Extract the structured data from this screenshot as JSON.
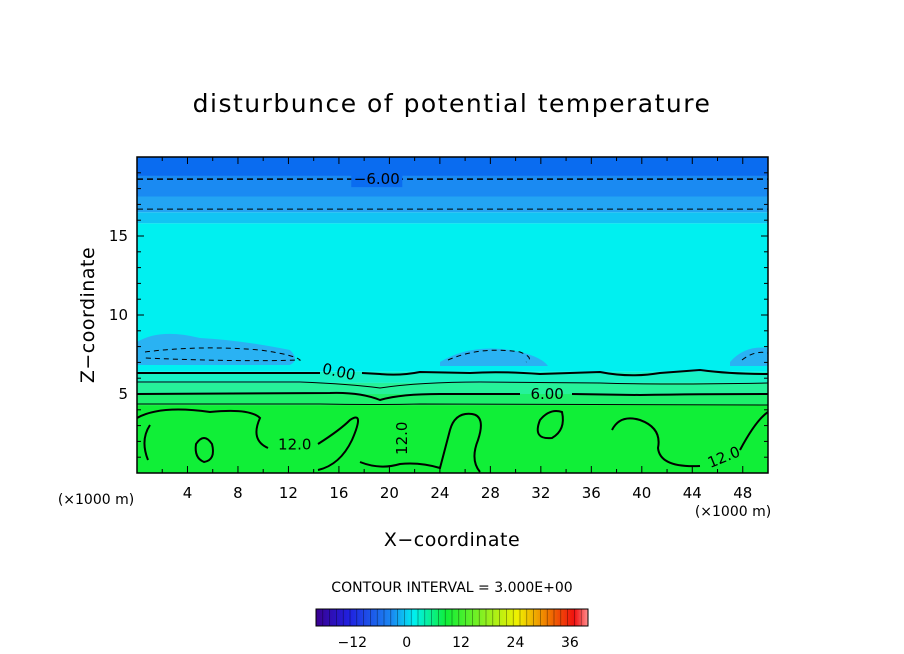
{
  "chart_data": {
    "type": "heatmap",
    "title": "disturbunce of potential temperature",
    "xlabel": "X−coordinate",
    "ylabel": "Z−coordinate",
    "x_units_left": "(×1000 m)",
    "x_units_right": "(×1000 m)",
    "xlim": [
      0,
      50
    ],
    "ylim": [
      0,
      20
    ],
    "x_ticks": [
      4,
      8,
      12,
      16,
      20,
      24,
      28,
      32,
      36,
      40,
      44,
      48
    ],
    "y_ticks": [
      5,
      10,
      15
    ],
    "contour_interval_text": "CONTOUR INTERVAL = 3.000E+00",
    "contour_labels": [
      {
        "text": "−6.00",
        "x": 19.0,
        "z": 18.6
      },
      {
        "text": "0.00",
        "x": 16.0,
        "z": 6.4
      },
      {
        "text": "6.00",
        "x": 32.5,
        "z": 5.0
      },
      {
        "text": "12.0",
        "x": 12.5,
        "z": 1.8
      },
      {
        "text": "12.0",
        "x": 21.0,
        "z": 2.2
      },
      {
        "text": "12.0",
        "x": 46.5,
        "z": 1.0
      }
    ],
    "colorbar": {
      "range": [
        -20,
        40
      ],
      "tick_labels": [
        "−12",
        "0",
        "12",
        "24",
        "36"
      ],
      "tick_values": [
        -12,
        0,
        12,
        24,
        36
      ]
    },
    "fill_bands": [
      {
        "z_from": 18.8,
        "z_to": 20.0,
        "color": "#0a6cf0"
      },
      {
        "z_from": 17.5,
        "z_to": 18.8,
        "color": "#1a8af2"
      },
      {
        "z_from": 16.5,
        "z_to": 17.5,
        "color": "#23a4f3"
      },
      {
        "z_from": 15.8,
        "z_to": 16.5,
        "color": "#12c4f3"
      },
      {
        "z_from": 6.4,
        "z_to": 15.8,
        "color": "#00f0f0"
      },
      {
        "z_from": 5.7,
        "z_to": 6.4,
        "color": "#17f2c6"
      },
      {
        "z_from": 5.0,
        "z_to": 5.7,
        "color": "#26f29a"
      },
      {
        "z_from": 4.3,
        "z_to": 5.0,
        "color": "#1ef06c"
      },
      {
        "z_from": 0.0,
        "z_to": 4.3,
        "color": "#10ef37"
      }
    ],
    "dashed_lines_z": [
      18.6,
      16.7
    ]
  }
}
